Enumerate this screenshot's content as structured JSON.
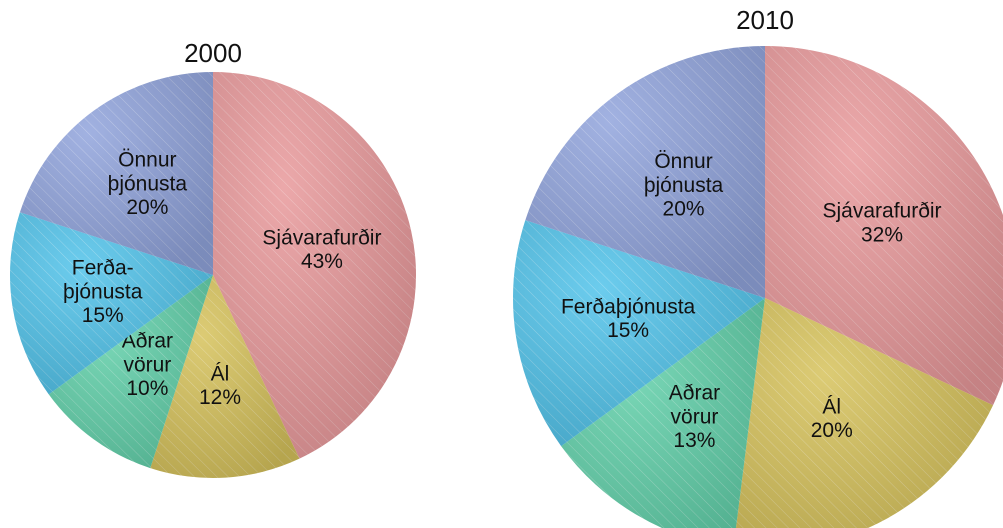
{
  "chart_data": [
    {
      "type": "pie",
      "title": "2000",
      "categories": [
        "Sjávarafurðir",
        "Ál",
        "Aðrar vörur",
        "Ferða-þjónusta",
        "Önnur þjónusta"
      ],
      "values": [
        43,
        12,
        10,
        15,
        20
      ],
      "value_labels": [
        "43%",
        "12%",
        "10%",
        "15%",
        "20%"
      ],
      "colors": [
        "#e8999b",
        "#d6c25c",
        "#62d0aa",
        "#52c3ea",
        "#91a4dc"
      ]
    },
    {
      "type": "pie",
      "title": "2010",
      "categories": [
        "Sjávarafurðir",
        "Ál",
        "Aðrar vörur",
        "Ferðaþjónusta",
        "Önnur þjónusta"
      ],
      "values": [
        32,
        20,
        13,
        15,
        20
      ],
      "value_labels": [
        "32%",
        "20%",
        "13%",
        "15%",
        "20%"
      ],
      "colors": [
        "#e8999b",
        "#d6c25c",
        "#62d0aa",
        "#52c3ea",
        "#91a4dc"
      ]
    }
  ]
}
